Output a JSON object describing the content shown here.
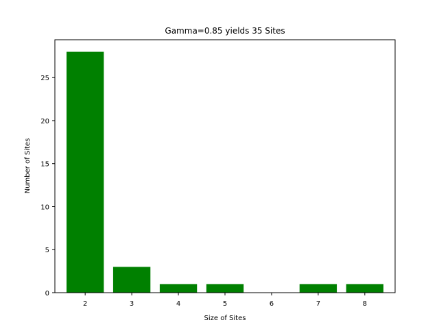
{
  "chart_data": {
    "type": "bar",
    "title": "Gamma=0.85 yields 35 Sites",
    "xlabel": "Size of Sites",
    "ylabel": "Number of Sites",
    "categories": [
      2,
      3,
      4,
      5,
      6,
      7,
      8
    ],
    "values": [
      28,
      3,
      1,
      1,
      0,
      1,
      1
    ],
    "xticks": [
      "2",
      "3",
      "4",
      "5",
      "6",
      "7",
      "8"
    ],
    "yticks": [
      "0",
      "5",
      "10",
      "15",
      "20",
      "25"
    ],
    "xlim": [
      1.35,
      8.65
    ],
    "ylim": [
      0,
      29.4
    ],
    "bar_color": "#008000",
    "grid": false
  }
}
